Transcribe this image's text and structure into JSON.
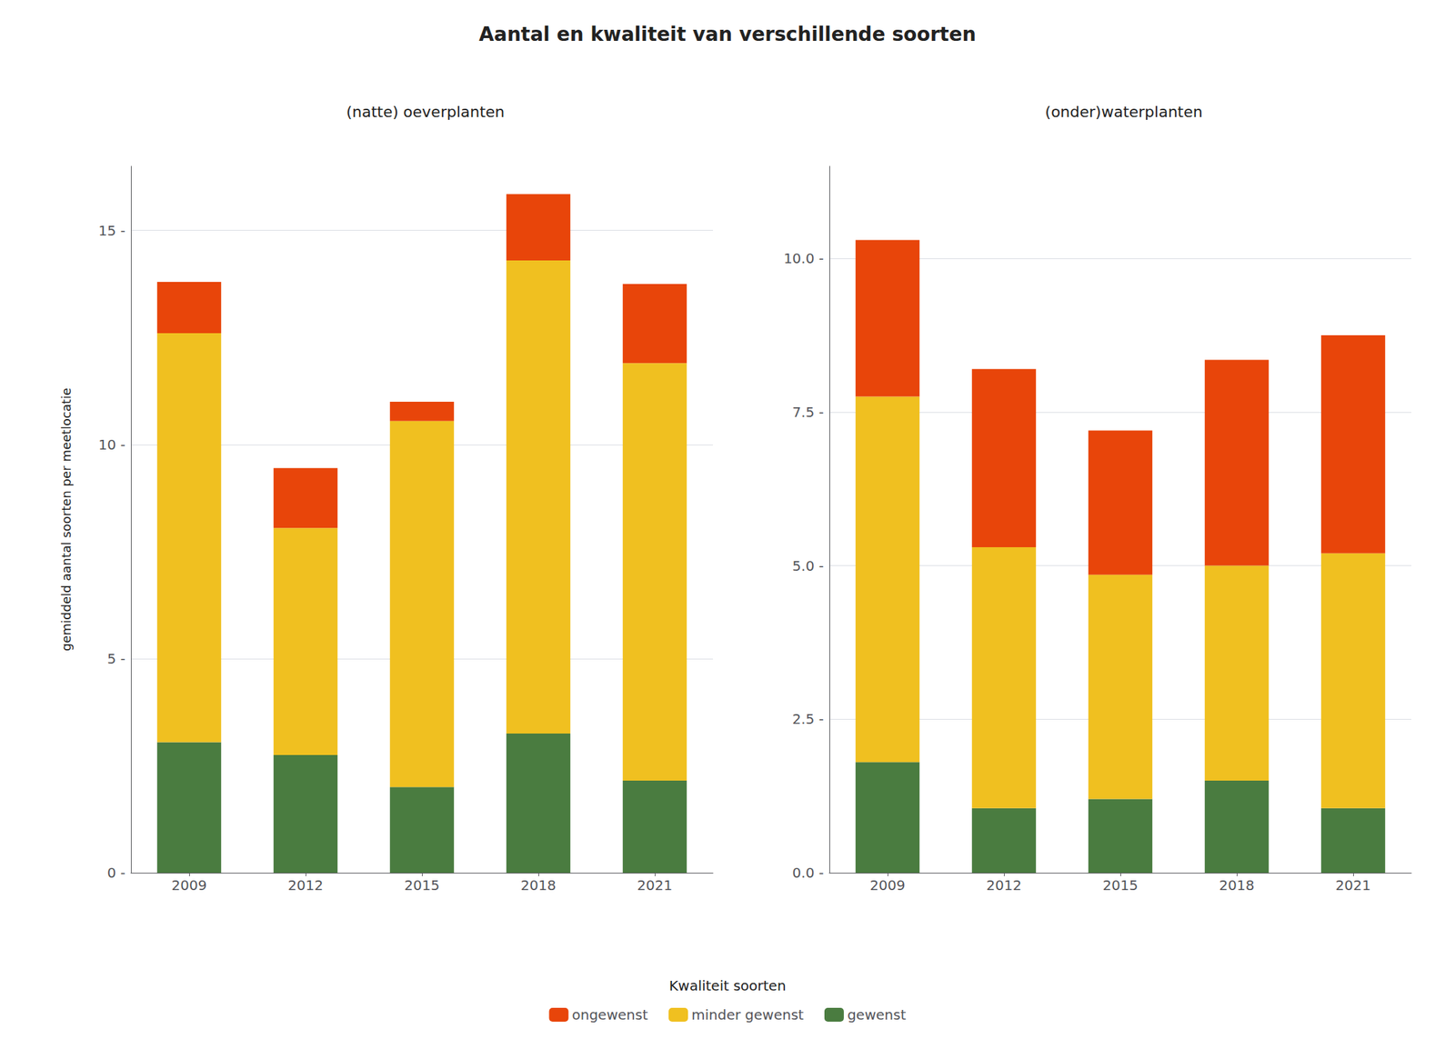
{
  "title": "Aantal en kwaliteit van verschillende soorten",
  "legend_title": "Kwaliteit soorten",
  "chart_data": [
    {
      "type": "bar",
      "stacked": true,
      "grid": true,
      "legend": "bottom",
      "subtitle": "(natte) oeverplanten",
      "ylabel": "gemiddeld aantal soorten per meetlocatie",
      "categories": [
        "2009",
        "2012",
        "2015",
        "2018",
        "2021"
      ],
      "series": [
        {
          "name": "gewenst",
          "color": "#4A7C40",
          "values": [
            3.05,
            2.75,
            2.0,
            3.25,
            2.15
          ]
        },
        {
          "name": "minder gewenst",
          "color": "#F0C020",
          "values": [
            9.55,
            5.3,
            8.55,
            11.05,
            9.75
          ]
        },
        {
          "name": "ongewenst",
          "color": "#E8450A",
          "values": [
            1.2,
            1.4,
            0.45,
            1.55,
            1.85
          ]
        }
      ],
      "ylim": [
        0,
        16.5
      ],
      "yticks": [
        {
          "value": 0,
          "label": "0 -"
        },
        {
          "value": 5,
          "label": "5 -"
        },
        {
          "value": 10,
          "label": "10 -"
        },
        {
          "value": 15,
          "label": "15 -"
        }
      ]
    },
    {
      "type": "bar",
      "stacked": true,
      "grid": true,
      "legend": "bottom",
      "subtitle": "(onder)waterplanten",
      "categories": [
        "2009",
        "2012",
        "2015",
        "2018",
        "2021"
      ],
      "series": [
        {
          "name": "gewenst",
          "color": "#4A7C40",
          "values": [
            1.8,
            1.05,
            1.2,
            1.5,
            1.05
          ]
        },
        {
          "name": "minder gewenst",
          "color": "#F0C020",
          "values": [
            5.95,
            4.25,
            3.65,
            3.5,
            4.15
          ]
        },
        {
          "name": "ongewenst",
          "color": "#E8450A",
          "values": [
            2.55,
            2.9,
            2.35,
            3.35,
            3.55
          ]
        }
      ],
      "ylim": [
        0,
        11.5
      ],
      "yticks": [
        {
          "value": 0.0,
          "label": "0.0 -"
        },
        {
          "value": 2.5,
          "label": "2.5 -"
        },
        {
          "value": 5.0,
          "label": "5.0 -"
        },
        {
          "value": 7.5,
          "label": "7.5 -"
        },
        {
          "value": 10.0,
          "label": "10.0 -"
        }
      ]
    }
  ]
}
